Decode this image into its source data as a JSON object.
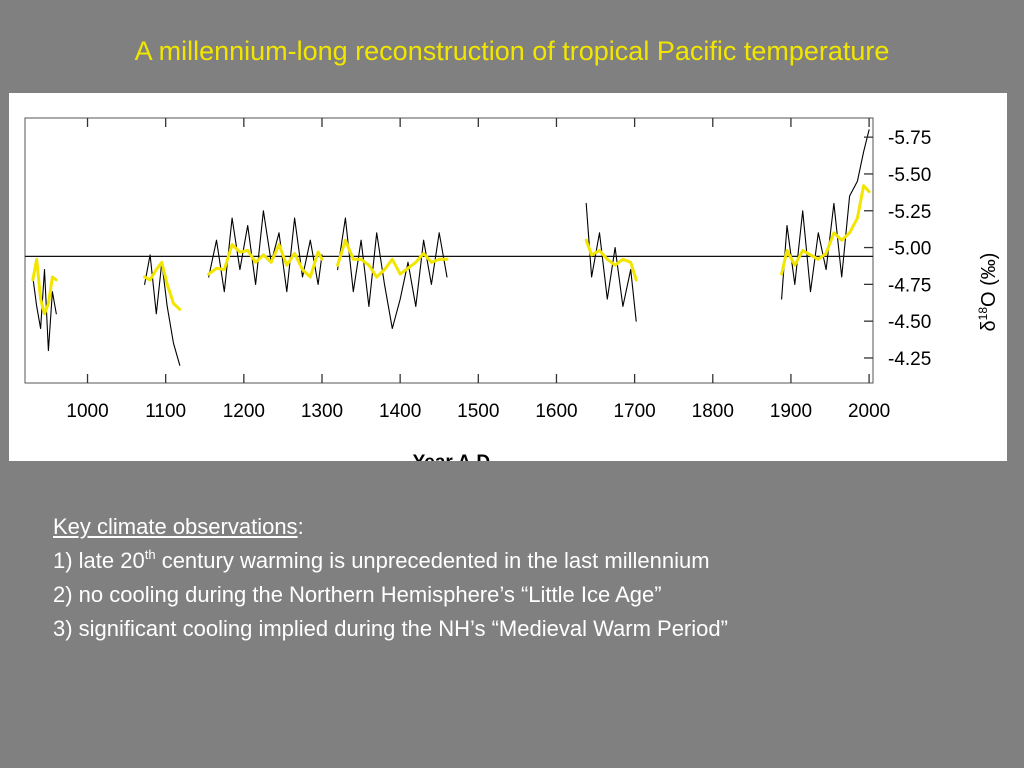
{
  "slide": {
    "title": "A millennium-long reconstruction of tropical Pacific temperature"
  },
  "colors": {
    "background": "#808080",
    "title": "#f2e600",
    "smoothed_line": "#f2e600",
    "raw_line": "#000000",
    "notes_text": "#ffffff"
  },
  "notes": {
    "heading": "Key climate observations",
    "heading_colon": ":",
    "items": [
      {
        "prefix": "1) late 20",
        "sup": "th",
        "suffix": " century warming is unprecedented in the last millennium"
      },
      {
        "prefix": "2) no cooling during the Northern Hemisphere’s “Little Ice Age”",
        "sup": "",
        "suffix": ""
      },
      {
        "prefix": "3) significant cooling implied during the NH’s “Medieval Warm Period”",
        "sup": "",
        "suffix": ""
      }
    ]
  },
  "chart_data": {
    "type": "line",
    "title": "",
    "xlabel": "Year A.D.",
    "ylabel": "δ18O (‰)",
    "ylabel_parts": {
      "symbol": "δ",
      "sup": "18",
      "rest": "O (‰)"
    },
    "xlim": [
      920,
      2005
    ],
    "ylim": [
      -5.88,
      -4.08
    ],
    "y_inverted": true,
    "y_axis_side": "right",
    "reference_line": -4.94,
    "x_ticks": [
      1000,
      1100,
      1200,
      1300,
      1400,
      1500,
      1600,
      1700,
      1800,
      1900,
      2000
    ],
    "x_tick_labels": [
      "1000",
      "1100",
      "1200",
      "1300",
      "1400",
      "1500",
      "1600",
      "1700",
      "1800",
      "1900",
      "2000"
    ],
    "y_ticks": [
      -5.75,
      -5.5,
      -5.25,
      -5.0,
      -4.75,
      -4.5,
      -4.25
    ],
    "y_tick_labels": [
      "-5.75",
      "-5.50",
      "-5.25",
      "-5.00",
      "-4.75",
      "-4.50",
      "-4.25"
    ],
    "grid": false,
    "series": [
      {
        "style": "raw",
        "segments": [
          {
            "x": [
              930,
              935,
              940,
              945,
              950,
              955,
              960
            ],
            "y": [
              -4.8,
              -4.6,
              -4.45,
              -4.85,
              -4.3,
              -4.7,
              -4.55
            ]
          },
          {
            "x": [
              1073,
              1080,
              1088,
              1095,
              1102,
              1110,
              1118
            ],
            "y": [
              -4.75,
              -4.95,
              -4.55,
              -4.9,
              -4.6,
              -4.35,
              -4.2
            ]
          },
          {
            "x": [
              1155,
              1165,
              1175,
              1185,
              1195,
              1205,
              1215,
              1225,
              1235,
              1245,
              1255,
              1265,
              1275,
              1285,
              1295,
              1300
            ],
            "y": [
              -4.8,
              -5.05,
              -4.7,
              -5.2,
              -4.85,
              -5.15,
              -4.75,
              -5.25,
              -4.9,
              -5.1,
              -4.7,
              -5.2,
              -4.8,
              -5.05,
              -4.75,
              -4.95
            ]
          },
          {
            "x": [
              1320,
              1330,
              1340,
              1350,
              1360,
              1370,
              1380,
              1390,
              1400,
              1410,
              1420,
              1430,
              1440,
              1450,
              1460
            ],
            "y": [
              -4.85,
              -5.2,
              -4.7,
              -5.05,
              -4.6,
              -5.1,
              -4.75,
              -4.45,
              -4.65,
              -4.9,
              -4.6,
              -5.05,
              -4.75,
              -5.1,
              -4.8
            ]
          },
          {
            "x": [
              1638,
              1645,
              1655,
              1665,
              1675,
              1685,
              1695,
              1702
            ],
            "y": [
              -5.3,
              -4.8,
              -5.1,
              -4.65,
              -5.0,
              -4.6,
              -4.85,
              -4.5
            ]
          },
          {
            "x": [
              1888,
              1895,
              1905,
              1915,
              1925,
              1935,
              1945,
              1955,
              1965,
              1975,
              1985,
              1993,
              2000
            ],
            "y": [
              -4.65,
              -5.15,
              -4.75,
              -5.25,
              -4.7,
              -5.1,
              -4.85,
              -5.3,
              -4.8,
              -5.35,
              -5.45,
              -5.65,
              -5.8
            ]
          }
        ]
      },
      {
        "style": "smoothed",
        "segments": [
          {
            "x": [
              930,
              935,
              940,
              945,
              950,
              955,
              960
            ],
            "y": [
              -4.78,
              -4.92,
              -4.65,
              -4.55,
              -4.62,
              -4.8,
              -4.78
            ]
          },
          {
            "x": [
              1073,
              1080,
              1088,
              1095,
              1102,
              1110,
              1118
            ],
            "y": [
              -4.8,
              -4.78,
              -4.85,
              -4.9,
              -4.75,
              -4.62,
              -4.58
            ]
          },
          {
            "x": [
              1155,
              1165,
              1175,
              1185,
              1195,
              1205,
              1215,
              1225,
              1235,
              1245,
              1255,
              1265,
              1275,
              1285,
              1295,
              1300
            ],
            "y": [
              -4.82,
              -4.86,
              -4.85,
              -5.02,
              -4.97,
              -4.98,
              -4.9,
              -4.95,
              -4.9,
              -5.02,
              -4.88,
              -4.96,
              -4.85,
              -4.8,
              -4.97,
              -4.92
            ]
          },
          {
            "x": [
              1320,
              1330,
              1340,
              1350,
              1360,
              1370,
              1380,
              1390,
              1400,
              1410,
              1420,
              1430,
              1440,
              1450,
              1460
            ],
            "y": [
              -4.88,
              -5.05,
              -4.92,
              -4.92,
              -4.88,
              -4.8,
              -4.85,
              -4.92,
              -4.82,
              -4.86,
              -4.9,
              -4.96,
              -4.9,
              -4.92,
              -4.92
            ]
          },
          {
            "x": [
              1638,
              1645,
              1655,
              1665,
              1675,
              1685,
              1695,
              1702
            ],
            "y": [
              -5.05,
              -4.95,
              -4.98,
              -4.92,
              -4.88,
              -4.92,
              -4.9,
              -4.78
            ]
          },
          {
            "x": [
              1888,
              1895,
              1905,
              1915,
              1925,
              1935,
              1945,
              1955,
              1965,
              1975,
              1985,
              1993,
              2000
            ],
            "y": [
              -4.82,
              -4.98,
              -4.88,
              -4.98,
              -4.95,
              -4.92,
              -4.96,
              -5.1,
              -5.05,
              -5.1,
              -5.2,
              -5.42,
              -5.38
            ]
          }
        ]
      }
    ]
  }
}
